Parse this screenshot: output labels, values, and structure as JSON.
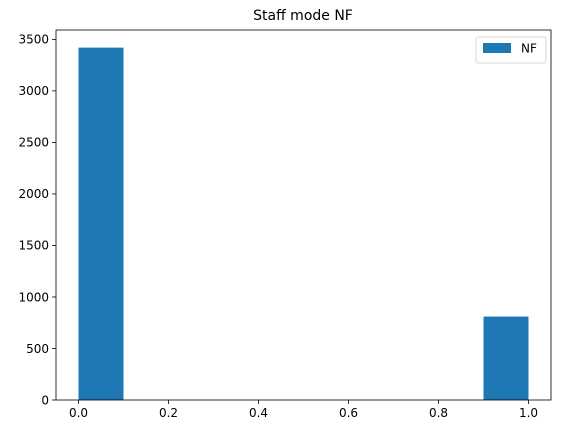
{
  "chart_data": {
    "type": "bar",
    "title": "Staff mode NF",
    "xlabel": "",
    "ylabel": "",
    "bins": [
      {
        "x0": 0.0,
        "x1": 0.1,
        "count": 3420
      },
      {
        "x0": 0.1,
        "x1": 0.2,
        "count": 0
      },
      {
        "x0": 0.2,
        "x1": 0.3,
        "count": 0
      },
      {
        "x0": 0.3,
        "x1": 0.4,
        "count": 0
      },
      {
        "x0": 0.4,
        "x1": 0.5,
        "count": 0
      },
      {
        "x0": 0.5,
        "x1": 0.6,
        "count": 0
      },
      {
        "x0": 0.6,
        "x1": 0.7,
        "count": 0
      },
      {
        "x0": 0.7,
        "x1": 0.8,
        "count": 0
      },
      {
        "x0": 0.8,
        "x1": 0.9,
        "count": 0
      },
      {
        "x0": 0.9,
        "x1": 1.0,
        "count": 810
      }
    ],
    "series": [
      {
        "name": "NF",
        "color": "#1f77b4"
      }
    ],
    "xlim": [
      -0.05,
      1.05
    ],
    "ylim": [
      0,
      3591
    ],
    "xticks": [
      "0.0",
      "0.2",
      "0.4",
      "0.6",
      "0.8",
      "1.0"
    ],
    "xtick_values": [
      0.0,
      0.2,
      0.4,
      0.6,
      0.8,
      1.0
    ],
    "yticks": [
      "0",
      "500",
      "1000",
      "1500",
      "2000",
      "2500",
      "3000",
      "3500"
    ],
    "ytick_values": [
      0,
      500,
      1000,
      1500,
      2000,
      2500,
      3000,
      3500
    ],
    "grid": false,
    "legend_position": "top-right"
  }
}
